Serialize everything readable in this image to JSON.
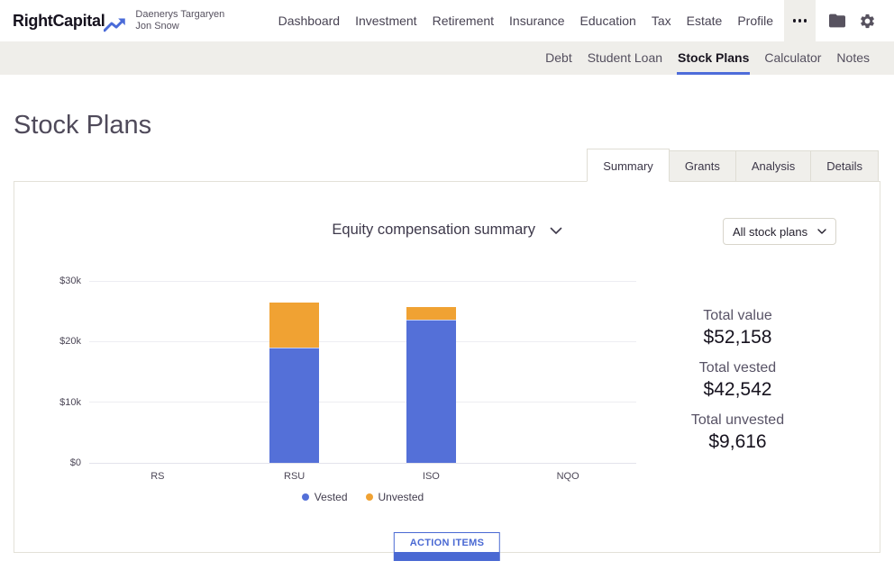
{
  "header": {
    "logo_text": "RightCapital",
    "clients": [
      "Daenerys Targaryen",
      "Jon Snow"
    ],
    "nav": [
      "Dashboard",
      "Investment",
      "Retirement",
      "Insurance",
      "Education",
      "Tax",
      "Estate",
      "Profile"
    ]
  },
  "subnav": {
    "items": [
      {
        "label": "Debt",
        "active": false
      },
      {
        "label": "Student Loan",
        "active": false
      },
      {
        "label": "Stock Plans",
        "active": true
      },
      {
        "label": "Calculator",
        "active": false
      },
      {
        "label": "Notes",
        "active": false
      }
    ]
  },
  "page": {
    "title": "Stock Plans"
  },
  "tabs": [
    {
      "label": "Summary",
      "active": true
    },
    {
      "label": "Grants",
      "active": false
    },
    {
      "label": "Analysis",
      "active": false
    },
    {
      "label": "Details",
      "active": false
    }
  ],
  "panel": {
    "chart_title": "Equity compensation summary",
    "filter_selected": "All stock plans"
  },
  "chart_data": {
    "type": "bar",
    "stacked": true,
    "title": "Equity compensation summary",
    "categories": [
      "RS",
      "RSU",
      "ISO",
      "NQO"
    ],
    "series": [
      {
        "name": "Vested",
        "color": "#5470d8",
        "values": [
          0,
          19000,
          23542,
          0
        ]
      },
      {
        "name": "Unvested",
        "color": "#f0a233",
        "values": [
          0,
          7500,
          2116,
          0
        ]
      }
    ],
    "ylim": [
      0,
      30000
    ],
    "yticks": [
      {
        "value": 0,
        "label": "$0"
      },
      {
        "value": 10000,
        "label": "$10k"
      },
      {
        "value": 20000,
        "label": "$20k"
      },
      {
        "value": 30000,
        "label": "$30k"
      }
    ],
    "grid": true,
    "legend_position": "bottom"
  },
  "stats": [
    {
      "label": "Total value",
      "value": "$52,158"
    },
    {
      "label": "Total vested",
      "value": "$42,542"
    },
    {
      "label": "Total unvested",
      "value": "$9,616"
    }
  ],
  "footer": {
    "action_button": "ACTION ITEMS"
  },
  "colors": {
    "accent": "#4a69d3",
    "vested": "#5470d8",
    "unvested": "#f0a233",
    "subnav_bg": "#efeeea"
  }
}
